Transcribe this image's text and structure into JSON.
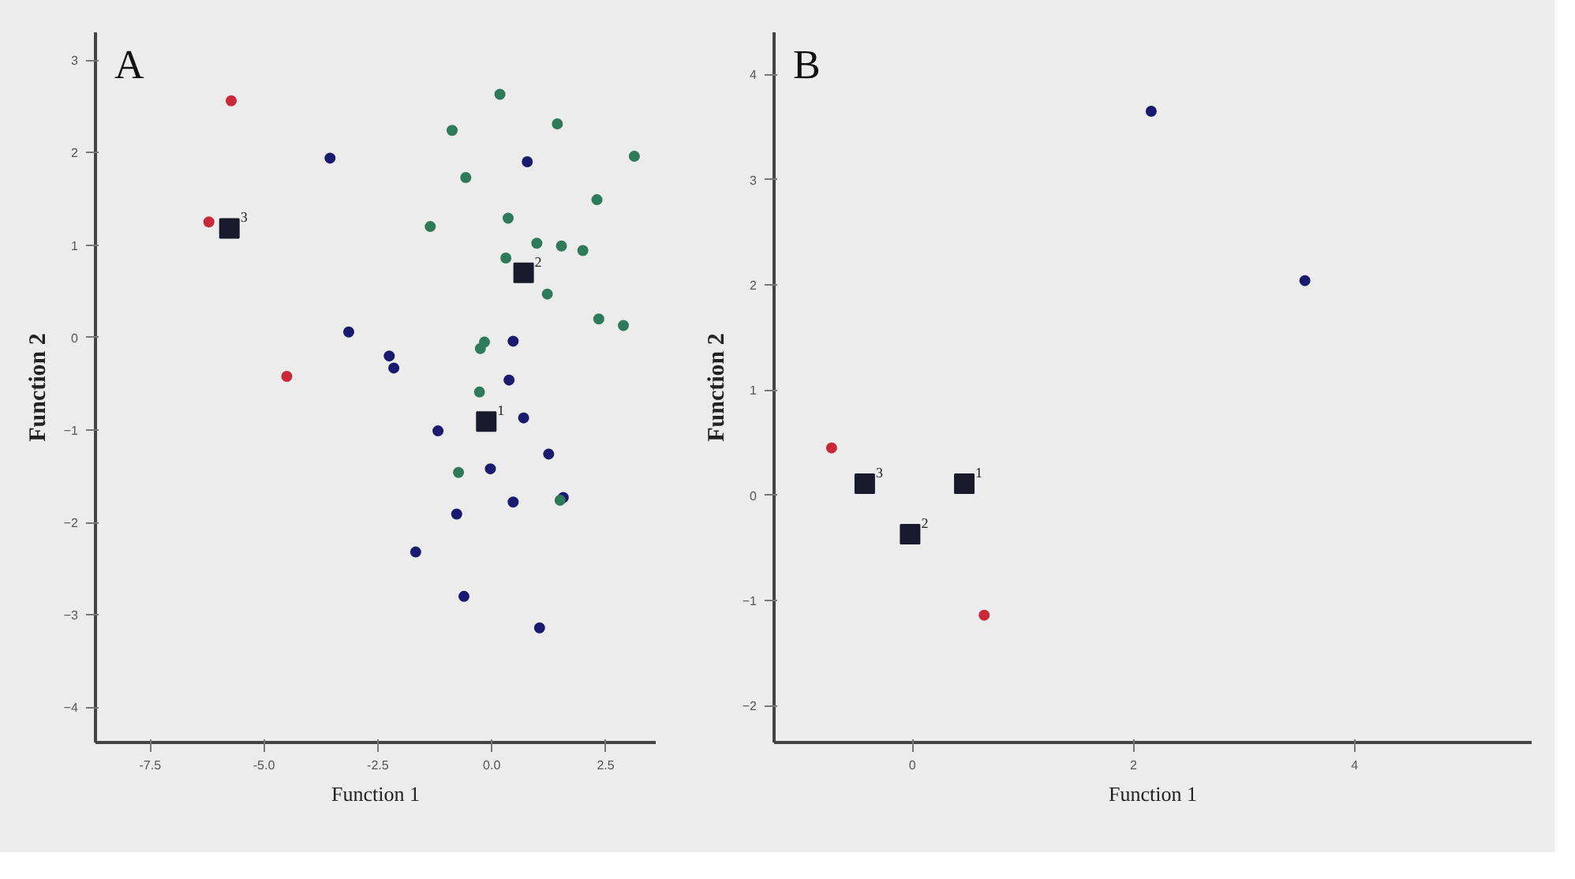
{
  "chart_data": [
    {
      "type": "scatter",
      "title": "A",
      "xlabel": "Function 1",
      "ylabel": "Function 2",
      "grid": false,
      "marker": "circle",
      "xlim": [
        -8.7,
        3.6
      ],
      "ylim": [
        -4.38,
        3.3
      ],
      "xticks": [
        {
          "value": -7.5,
          "label": "-7.5"
        },
        {
          "value": -5.0,
          "label": "-5.0"
        },
        {
          "value": -2.5,
          "label": "-2.5"
        },
        {
          "value": 0.0,
          "label": "0.0"
        },
        {
          "value": 2.5,
          "label": "2.5"
        }
      ],
      "yticks": [
        -4,
        -3,
        -2,
        -1,
        0,
        1,
        2,
        3
      ],
      "series": [
        {
          "color": "#c8283a",
          "x": [
            -5.72,
            -6.21,
            -4.5
          ],
          "values": [
            2.56,
            1.25,
            -0.42
          ]
        },
        {
          "color": "#1a1a6e",
          "x": [
            -3.55,
            0.78,
            -3.14,
            -2.25,
            -2.15,
            0.47,
            0.38,
            -1.18,
            0.7,
            -0.03,
            1.25,
            0.47,
            -0.77,
            1.57,
            -1.67,
            -0.61,
            1.05
          ],
          "values": [
            1.94,
            1.9,
            0.06,
            -0.2,
            -0.33,
            -0.04,
            -0.46,
            -1.01,
            -0.87,
            -1.42,
            -1.26,
            -1.78,
            -1.91,
            -1.73,
            -2.32,
            -2.8,
            -3.14
          ]
        },
        {
          "color": "#2e7a5a",
          "x": [
            0.18,
            -0.87,
            1.44,
            3.13,
            -0.57,
            2.31,
            0.36,
            -1.35,
            0.99,
            1.53,
            2.0,
            0.31,
            2.89,
            -0.25,
            -0.16,
            -0.27,
            -0.73,
            1.5,
            1.22,
            2.35
          ],
          "values": [
            2.63,
            2.24,
            2.31,
            1.96,
            1.73,
            1.49,
            1.29,
            1.2,
            1.02,
            0.99,
            0.94,
            0.86,
            0.13,
            -0.12,
            -0.05,
            -0.59,
            -1.46,
            -1.76,
            0.47,
            0.2
          ]
        },
        {
          "color": "#1a1a2e",
          "marker": "square",
          "x": [
            -5.76,
            0.7,
            -0.12
          ],
          "values": [
            1.18,
            0.7,
            -0.91
          ]
        }
      ],
      "annotations": [
        {
          "text": "3",
          "x": -5.76,
          "y": 1.18
        },
        {
          "text": "2",
          "x": 0.7,
          "y": 0.7
        },
        {
          "text": "1",
          "x": -0.12,
          "y": -0.91
        }
      ]
    },
    {
      "type": "scatter",
      "title": "B",
      "xlabel": "Function 1",
      "ylabel": "Function 2",
      "grid": false,
      "marker": "circle",
      "xlim": [
        -1.25,
        5.6
      ],
      "ylim": [
        -2.35,
        4.4
      ],
      "xticks": [
        0,
        2,
        4
      ],
      "yticks": [
        -2,
        -1,
        0,
        1,
        2,
        3,
        4
      ],
      "series": [
        {
          "color": "#c8283a",
          "x": [
            -0.73,
            0.65
          ],
          "values": [
            0.45,
            -1.14
          ]
        },
        {
          "color": "#1a1a6e",
          "x": [
            2.16,
            3.55
          ],
          "values": [
            3.65,
            2.04
          ]
        },
        {
          "color": "#1a1a2e",
          "marker": "square",
          "x": [
            -0.43,
            -0.02,
            0.47
          ],
          "values": [
            0.11,
            -0.37,
            0.11
          ]
        }
      ],
      "annotations": [
        {
          "text": "3",
          "x": -0.43,
          "y": 0.11
        },
        {
          "text": "2",
          "x": -0.02,
          "y": -0.37
        },
        {
          "text": "1",
          "x": 0.47,
          "y": 0.11
        }
      ]
    }
  ]
}
